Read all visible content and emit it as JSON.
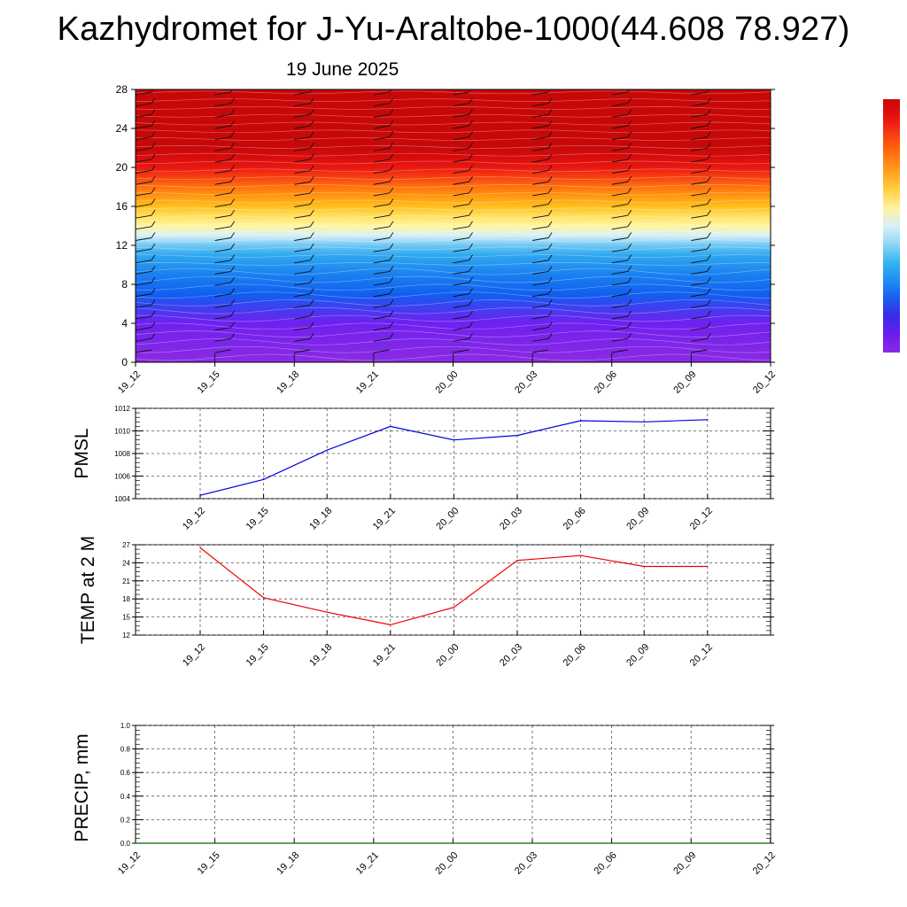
{
  "title": "Kazhydromet for J-Yu-Araltobe-1000(44.608 78.927)",
  "subtitle": "19 June 2025",
  "colors": {
    "pmsl_line": "#0000dd",
    "temp_line": "#ee0000",
    "precip_line": "#006400",
    "grid": "#555555",
    "colorbar": [
      "#8a2be2",
      "#6a1cf0",
      "#3a2ae8",
      "#1a5cf0",
      "#1e8ff0",
      "#34b6f0",
      "#8fd8f4",
      "#d8f0f8",
      "#fff2a0",
      "#ffd040",
      "#ffa020",
      "#ff7010",
      "#f84010",
      "#e81010",
      "#c80808"
    ]
  },
  "chart_data": [
    {
      "type": "heatmap",
      "title": "",
      "xlabel": "",
      "ylabel": "",
      "categories": [
        "19_12",
        "19_15",
        "19_18",
        "19_21",
        "20_00",
        "20_03",
        "20_06",
        "20_09",
        "20_12"
      ],
      "yticks": [
        "0",
        "4",
        "8",
        "12",
        "16",
        "20",
        "24",
        "28"
      ],
      "ylim": [
        0,
        28
      ],
      "colormap": "blue-to-red",
      "color_levels": [
        {
          "level": 0,
          "color": "#8a2be2"
        },
        {
          "level": 4,
          "color": "#7020f0"
        },
        {
          "level": 6,
          "color": "#3048f0"
        },
        {
          "level": 7,
          "color": "#1060f0"
        },
        {
          "level": 9,
          "color": "#1a80f0"
        },
        {
          "level": 11,
          "color": "#30a8f0"
        },
        {
          "level": 12,
          "color": "#70c8f4"
        },
        {
          "level": 13,
          "color": "#d8f0f8"
        },
        {
          "level": 14,
          "color": "#fff6a0"
        },
        {
          "level": 15,
          "color": "#ffe060"
        },
        {
          "level": 16,
          "color": "#ffc020"
        },
        {
          "level": 17,
          "color": "#ff9a10"
        },
        {
          "level": 18,
          "color": "#ff7010"
        },
        {
          "level": 19,
          "color": "#f84010"
        },
        {
          "level": 20,
          "color": "#e81810"
        },
        {
          "level": 21,
          "color": "#d80c0c"
        },
        {
          "level": 22,
          "color": "#c80808"
        }
      ],
      "wind_barbs": true
    },
    {
      "type": "line",
      "ylabel": "PMSL",
      "categories": [
        "19_12",
        "19_15",
        "19_18",
        "19_21",
        "20_00",
        "20_03",
        "20_06",
        "20_09",
        "20_12"
      ],
      "yticks": [
        "1004",
        "1006",
        "1008",
        "1010",
        "1012"
      ],
      "ylim": [
        1004,
        1012
      ],
      "series": [
        {
          "values": [
            1004.3,
            1005.7,
            1008.3,
            1010.4,
            1009.2,
            1009.6,
            1010.9,
            1010.8,
            1011.0
          ]
        }
      ],
      "grid": true
    },
    {
      "type": "line",
      "ylabel": "TEMP at 2 M",
      "categories": [
        "19_12",
        "19_15",
        "19_18",
        "19_21",
        "20_00",
        "20_03",
        "20_06",
        "20_09",
        "20_12"
      ],
      "yticks": [
        "12",
        "15",
        "18",
        "21",
        "24",
        "27"
      ],
      "ylim": [
        12,
        27
      ],
      "series": [
        {
          "values": [
            26.5,
            18.2,
            15.8,
            13.7,
            16.6,
            24.4,
            25.2,
            23.4,
            23.4
          ]
        }
      ],
      "grid": true
    },
    {
      "type": "line",
      "ylabel": "PRECIP, mm",
      "categories": [
        "19_12",
        "19_15",
        "19_18",
        "19_21",
        "20_00",
        "20_03",
        "20_06",
        "20_09",
        "20_12"
      ],
      "yticks": [
        "0.0",
        "0.2",
        "0.4",
        "0.6",
        "0.8",
        "1.0"
      ],
      "ylim": [
        0,
        1
      ],
      "series": [
        {
          "values": [
            0,
            0,
            0,
            0,
            0,
            0,
            0,
            0,
            0
          ]
        }
      ],
      "grid": true
    }
  ]
}
